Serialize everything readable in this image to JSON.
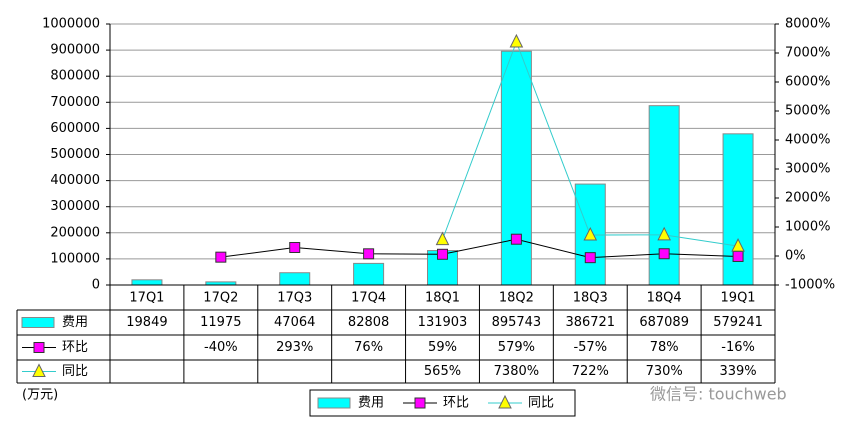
{
  "chart_data": {
    "type": "bar",
    "categories": [
      "17Q1",
      "17Q2",
      "17Q3",
      "17Q4",
      "18Q1",
      "18Q2",
      "18Q3",
      "18Q4",
      "19Q1"
    ],
    "series": [
      {
        "name": "费用",
        "type": "bar",
        "color": "#00ffff",
        "values": [
          19849,
          11975,
          47064,
          82808,
          131903,
          895743,
          386721,
          687089,
          579241
        ]
      },
      {
        "name": "环比",
        "type": "line",
        "axis": "y2",
        "color": "#000000",
        "marker_color": "#ff00ff",
        "marker": "square",
        "values": [
          null,
          -40,
          293,
          76,
          59,
          579,
          -57,
          78,
          -16
        ],
        "value_labels": [
          null,
          "-40%",
          "293%",
          "76%",
          "59%",
          "579%",
          "-57%",
          "78%",
          "-16%"
        ]
      },
      {
        "name": "同比",
        "type": "line",
        "axis": "y2",
        "color": "#33cccc",
        "marker_color": "#ffff00",
        "marker": "triangle",
        "values": [
          null,
          null,
          null,
          null,
          565,
          7380,
          722,
          730,
          339
        ],
        "value_labels": [
          null,
          null,
          null,
          null,
          "565%",
          "7380%",
          "722%",
          "730%",
          "339%"
        ]
      }
    ],
    "ylim": [
      0,
      1000000
    ],
    "yticks": [
      0,
      100000,
      200000,
      300000,
      400000,
      500000,
      600000,
      700000,
      800000,
      900000,
      1000000
    ],
    "y2lim": [
      -1000,
      8000
    ],
    "y2ticks": [
      {
        "value": -1000,
        "label": "-1000%"
      },
      {
        "value": 0,
        "label": "0%"
      },
      {
        "value": 1000,
        "label": "1000%"
      },
      {
        "value": 2000,
        "label": "2000%"
      },
      {
        "value": 3000,
        "label": "3000%"
      },
      {
        "value": 4000,
        "label": "4000%"
      },
      {
        "value": 5000,
        "label": "5000%"
      },
      {
        "value": 6000,
        "label": "6000%"
      },
      {
        "value": 7000,
        "label": "7000%"
      },
      {
        "value": 8000,
        "label": "8000%"
      }
    ],
    "grid": true,
    "unit_label": "(万元)",
    "watermark": "微信号: touchweb"
  }
}
